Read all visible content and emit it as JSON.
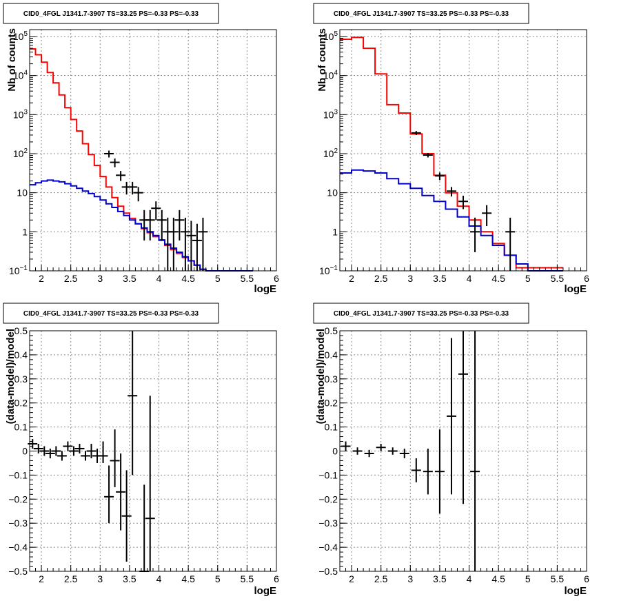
{
  "chart_data": [
    {
      "id": "p1",
      "type": "line",
      "title": "CID0_4FGL J1341.7-3907 TS=33.25 PS=-0.33 PS=-0.33",
      "xlabel": "logE",
      "ylabel": "Nb of counts",
      "xlim": [
        1.8,
        6.0
      ],
      "ylim": [
        0.1,
        150000
      ],
      "yscale": "log",
      "grid": true,
      "xticks": [
        {
          "v": 2,
          "t": "2"
        },
        {
          "v": 2.5,
          "t": "2.5"
        },
        {
          "v": 3,
          "t": "3"
        },
        {
          "v": 3.5,
          "t": "3.5"
        },
        {
          "v": 4,
          "t": "4"
        },
        {
          "v": 4.5,
          "t": "4.5"
        },
        {
          "v": 5,
          "t": "5"
        },
        {
          "v": 5.5,
          "t": "5.5"
        },
        {
          "v": 6,
          "t": "6"
        }
      ],
      "yticks": [
        {
          "v": 0.1,
          "b": "10",
          "e": "−1"
        },
        {
          "v": 1,
          "b": "1",
          "e": ""
        },
        {
          "v": 10,
          "b": "10",
          "e": ""
        },
        {
          "v": 100,
          "b": "10",
          "e": "2"
        },
        {
          "v": 1000,
          "b": "10",
          "e": "3"
        },
        {
          "v": 10000,
          "b": "10",
          "e": "4"
        },
        {
          "v": 100000,
          "b": "10",
          "e": "5"
        }
      ],
      "series": [
        {
          "kind": "step",
          "color": "#ff0000",
          "edges": [
            1.8,
            1.9,
            2.0,
            2.1,
            2.2,
            2.3,
            2.4,
            2.5,
            2.6,
            2.7,
            2.8,
            2.9,
            3.0,
            3.1,
            3.2,
            3.3,
            3.4,
            3.5,
            3.6,
            3.7,
            3.8,
            3.9,
            4.0,
            4.1,
            4.2,
            4.3,
            4.4,
            4.5,
            4.6,
            4.7,
            4.8,
            4.9,
            5.0
          ],
          "values": [
            48000,
            34000,
            22000,
            12000,
            6500,
            3200,
            1500,
            750,
            380,
            180,
            95,
            50,
            26,
            14,
            7.5,
            4.5,
            3.0,
            2.2,
            1.6,
            1.2,
            0.95,
            0.75,
            0.6,
            0.45,
            0.35,
            0.28,
            0.22,
            0.18,
            0.14,
            0.11,
            0.1,
            0.1
          ]
        },
        {
          "kind": "step",
          "color": "#0000cc",
          "edges": [
            1.8,
            1.9,
            2.0,
            2.1,
            2.2,
            2.3,
            2.4,
            2.5,
            2.6,
            2.7,
            2.8,
            2.9,
            3.0,
            3.1,
            3.2,
            3.3,
            3.4,
            3.5,
            3.6,
            3.7,
            3.8,
            3.9,
            4.0,
            4.1,
            4.2,
            4.3,
            4.4,
            4.5,
            4.6,
            4.7,
            4.8,
            4.9,
            5.0
          ],
          "values": [
            16,
            18,
            20,
            21,
            20,
            19,
            17,
            15,
            13,
            11,
            9.5,
            8,
            6.5,
            5.2,
            4.2,
            3.3,
            2.6,
            2.0,
            1.6,
            1.25,
            1.0,
            0.8,
            0.62,
            0.48,
            0.38,
            0.3,
            0.23,
            0.18,
            0.14,
            0.11,
            0.1,
            0.1
          ]
        },
        {
          "kind": "points",
          "color": "#000000",
          "x": [
            3.15,
            3.25,
            3.35,
            3.45,
            3.55,
            3.65,
            3.75,
            3.85,
            3.95,
            4.05,
            4.15,
            4.25,
            4.35,
            4.45,
            4.55,
            4.65,
            4.75
          ],
          "y": [
            100,
            60,
            28,
            14,
            14,
            10,
            2.0,
            2.0,
            4.0,
            2.0,
            1.0,
            1.0,
            2.0,
            1.0,
            0.8,
            0.6,
            1.0
          ],
          "ylo": [
            80,
            45,
            20,
            9,
            9,
            6,
            0.6,
            0.6,
            2.0,
            0.6,
            0.1,
            0.1,
            0.6,
            0.1,
            0.1,
            0.1,
            0.1
          ],
          "yhi": [
            120,
            75,
            36,
            19,
            19,
            14,
            3.6,
            3.6,
            6.0,
            3.6,
            2.3,
            2.3,
            3.6,
            2.3,
            1.9,
            1.6,
            2.3
          ]
        }
      ]
    },
    {
      "id": "p2",
      "type": "line",
      "title": "CID0_4FGL J1341.7-3907 TS=33.25 PS=-0.33 PS=-0.33",
      "xlabel": "logE",
      "ylabel": "Nb of counts",
      "xlim": [
        1.8,
        6.0
      ],
      "ylim": [
        0.1,
        150000
      ],
      "yscale": "log",
      "grid": true,
      "xticks": [
        {
          "v": 2,
          "t": "2"
        },
        {
          "v": 2.5,
          "t": "2.5"
        },
        {
          "v": 3,
          "t": "3"
        },
        {
          "v": 3.5,
          "t": "3.5"
        },
        {
          "v": 4,
          "t": "4"
        },
        {
          "v": 4.5,
          "t": "4.5"
        },
        {
          "v": 5,
          "t": "5"
        },
        {
          "v": 5.5,
          "t": "5.5"
        },
        {
          "v": 6,
          "t": "6"
        }
      ],
      "yticks": [
        {
          "v": 0.1,
          "b": "10",
          "e": "−1"
        },
        {
          "v": 1,
          "b": "1",
          "e": ""
        },
        {
          "v": 10,
          "b": "10",
          "e": ""
        },
        {
          "v": 100,
          "b": "10",
          "e": "2"
        },
        {
          "v": 1000,
          "b": "10",
          "e": "3"
        },
        {
          "v": 10000,
          "b": "10",
          "e": "4"
        },
        {
          "v": 100000,
          "b": "10",
          "e": "5"
        }
      ],
      "series": [
        {
          "kind": "step",
          "color": "#ff0000",
          "edges": [
            1.8,
            2.0,
            2.2,
            2.4,
            2.6,
            2.8,
            3.0,
            3.2,
            3.4,
            3.6,
            3.8,
            4.0,
            4.2,
            4.4,
            4.6,
            4.8,
            5.0
          ],
          "values": [
            85000,
            95000,
            50000,
            11000,
            1800,
            1100,
            320,
            100,
            28,
            10,
            4.5,
            2.0,
            1.0,
            0.5,
            0.25,
            0.12
          ]
        },
        {
          "kind": "step",
          "color": "#0000cc",
          "edges": [
            1.8,
            2.0,
            2.2,
            2.4,
            2.6,
            2.8,
            3.0,
            3.2,
            3.4,
            3.6,
            3.8,
            4.0,
            4.2,
            4.4,
            4.6,
            4.8,
            5.0,
            5.2,
            5.4
          ],
          "values": [
            32,
            38,
            36,
            32,
            23,
            17,
            13,
            8.5,
            6,
            3.8,
            2.4,
            1.4,
            0.8,
            0.45,
            0.25,
            0.15,
            0.1,
            0.1
          ]
        },
        {
          "kind": "points",
          "color": "#000000",
          "x": [
            3.1,
            3.3,
            3.5,
            3.7,
            3.9,
            4.1,
            4.3,
            4.7
          ],
          "y": [
            340,
            92,
            27,
            11,
            6,
            1.0,
            3.0,
            1.0
          ],
          "ylo": [
            300,
            80,
            21,
            8,
            3.8,
            0.3,
            1.4,
            0.1
          ],
          "yhi": [
            380,
            104,
            33,
            14,
            8.4,
            2.3,
            4.8,
            2.3
          ]
        }
      ]
    },
    {
      "id": "p3",
      "type": "scatter",
      "title": "CID0_4FGL J1341.7-3907 TS=33.25 PS=-0.33 PS=-0.33",
      "xlabel": "logE",
      "ylabel": "(data-model)/model",
      "xlim": [
        1.8,
        6.0
      ],
      "ylim": [
        -0.5,
        0.5
      ],
      "grid": true,
      "xticks": [
        {
          "v": 2,
          "t": "2"
        },
        {
          "v": 2.5,
          "t": "2.5"
        },
        {
          "v": 3,
          "t": "3"
        },
        {
          "v": 3.5,
          "t": "3.5"
        },
        {
          "v": 4,
          "t": "4"
        },
        {
          "v": 4.5,
          "t": "4.5"
        },
        {
          "v": 5,
          "t": "5"
        },
        {
          "v": 5.5,
          "t": "5.5"
        },
        {
          "v": 6,
          "t": "6"
        }
      ],
      "yticks": [
        {
          "v": -0.5,
          "t": "−0.5"
        },
        {
          "v": -0.4,
          "t": "−0.4"
        },
        {
          "v": -0.3,
          "t": "−0.3"
        },
        {
          "v": -0.2,
          "t": "−0.2"
        },
        {
          "v": -0.1,
          "t": "−0.1"
        },
        {
          "v": 0,
          "t": "0"
        },
        {
          "v": 0.1,
          "t": "0.1"
        },
        {
          "v": 0.2,
          "t": "0.2"
        },
        {
          "v": 0.3,
          "t": "0.3"
        },
        {
          "v": 0.4,
          "t": "0.4"
        },
        {
          "v": 0.5,
          "t": "0.5"
        }
      ],
      "series": [
        {
          "kind": "points",
          "color": "#000000",
          "x": [
            1.85,
            1.95,
            2.05,
            2.15,
            2.25,
            2.35,
            2.45,
            2.55,
            2.65,
            2.75,
            2.85,
            2.95,
            3.05,
            3.15,
            3.25,
            3.35,
            3.45,
            3.55,
            3.75,
            3.85
          ],
          "y": [
            0.03,
            0.01,
            0.0,
            -0.01,
            0.0,
            -0.02,
            0.02,
            0.0,
            0.01,
            -0.02,
            0.0,
            -0.02,
            -0.02,
            -0.19,
            -0.04,
            -0.17,
            -0.27,
            0.23,
            -0.5,
            -0.28
          ],
          "ylo": [
            0.01,
            -0.01,
            -0.02,
            -0.03,
            -0.02,
            -0.04,
            0.0,
            -0.02,
            -0.01,
            -0.04,
            -0.03,
            -0.05,
            -0.05,
            -0.3,
            -0.15,
            -0.33,
            -0.46,
            -0.1,
            -0.5,
            -0.5
          ],
          "yhi": [
            0.05,
            0.03,
            0.02,
            0.01,
            0.02,
            0.0,
            0.04,
            0.02,
            0.03,
            0.0,
            0.03,
            0.01,
            0.04,
            -0.06,
            0.09,
            -0.01,
            -0.08,
            0.5,
            -0.14,
            0.23
          ]
        }
      ]
    },
    {
      "id": "p4",
      "type": "scatter",
      "title": "CID0_4FGL J1341.7-3907 TS=33.25 PS=-0.33 PS=-0.33",
      "xlabel": "logE",
      "ylabel": "(data-model)/model",
      "xlim": [
        1.8,
        6.0
      ],
      "ylim": [
        -0.5,
        0.5
      ],
      "grid": true,
      "xticks": [
        {
          "v": 2,
          "t": "2"
        },
        {
          "v": 2.5,
          "t": "2.5"
        },
        {
          "v": 3,
          "t": "3"
        },
        {
          "v": 3.5,
          "t": "3.5"
        },
        {
          "v": 4,
          "t": "4"
        },
        {
          "v": 4.5,
          "t": "4.5"
        },
        {
          "v": 5,
          "t": "5"
        },
        {
          "v": 5.5,
          "t": "5.5"
        },
        {
          "v": 6,
          "t": "6"
        }
      ],
      "yticks": [
        {
          "v": -0.5,
          "t": "−0.5"
        },
        {
          "v": -0.4,
          "t": "−0.4"
        },
        {
          "v": -0.3,
          "t": "−0.3"
        },
        {
          "v": -0.2,
          "t": "−0.2"
        },
        {
          "v": -0.1,
          "t": "−0.1"
        },
        {
          "v": 0,
          "t": "0"
        },
        {
          "v": 0.1,
          "t": "0.1"
        },
        {
          "v": 0.2,
          "t": "0.2"
        },
        {
          "v": 0.3,
          "t": "0.3"
        },
        {
          "v": 0.4,
          "t": "0.4"
        },
        {
          "v": 0.5,
          "t": "0.5"
        }
      ],
      "series": [
        {
          "kind": "points",
          "color": "#000000",
          "x": [
            1.9,
            2.1,
            2.3,
            2.5,
            2.7,
            2.9,
            3.1,
            3.3,
            3.5,
            3.7,
            3.9,
            4.1
          ],
          "y": [
            0.02,
            0.0,
            -0.01,
            0.015,
            0.0,
            -0.01,
            -0.08,
            -0.085,
            -0.085,
            0.145,
            0.32,
            -0.085
          ],
          "ylo": [
            0.0,
            -0.015,
            -0.025,
            0.0,
            -0.015,
            -0.03,
            -0.13,
            -0.18,
            -0.26,
            -0.18,
            -0.22,
            -0.5
          ],
          "yhi": [
            0.04,
            0.015,
            0.005,
            0.03,
            0.015,
            0.01,
            -0.03,
            0.01,
            0.09,
            0.47,
            0.5,
            0.5
          ]
        }
      ]
    }
  ]
}
